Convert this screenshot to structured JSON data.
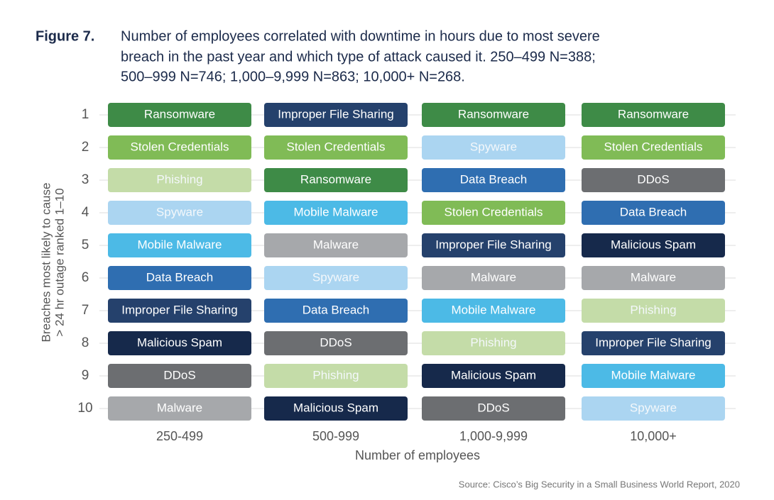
{
  "figure": {
    "label": "Figure 7.",
    "caption_lines": [
      "Number of employees correlated with downtime in hours due to most severe",
      "breach in the past year and which type of attack caused it. 250–499 N=388;",
      "500–999 N=746; 1,000–9,999 N=863; 10,000+ N=268."
    ]
  },
  "y_axis_label_lines": [
    "Breaches most likely to cause",
    "> 24 hr outage ranked 1–10"
  ],
  "ranks": [
    1,
    2,
    3,
    4,
    5,
    6,
    7,
    8,
    9,
    10
  ],
  "columns": [
    {
      "label": "250-499",
      "items": [
        "Ransomware",
        "Stolen Credentials",
        "Phishing",
        "Spyware",
        "Mobile Malware",
        "Data Breach",
        "Improper File Sharing",
        "Malicious Spam",
        "DDoS",
        "Malware"
      ]
    },
    {
      "label": "500-999",
      "items": [
        "Improper File Sharing",
        "Stolen Credentials",
        "Ransomware",
        "Mobile Malware",
        "Malware",
        "Spyware",
        "Data Breach",
        "DDoS",
        "Phishing",
        "Malicious Spam"
      ]
    },
    {
      "label": "1,000-9,999",
      "items": [
        "Ransomware",
        "Spyware",
        "Data Breach",
        "Stolen Credentials",
        "Improper File Sharing",
        "Malware",
        "Mobile Malware",
        "Phishing",
        "Malicious Spam",
        "DDoS"
      ]
    },
    {
      "label": "10,000+",
      "items": [
        "Ransomware",
        "Stolen Credentials",
        "DDoS",
        "Data Breach",
        "Malicious Spam",
        "Malware",
        "Phishing",
        "Improper File Sharing",
        "Mobile Malware",
        "Spyware"
      ]
    }
  ],
  "colors": {
    "Ransomware": "#3e8b47",
    "Stolen Credentials": "#80bb56",
    "Phishing": "#c4dca8",
    "Spyware": "#abd5f1",
    "Mobile Malware": "#4cbae6",
    "Data Breach": "#2f6eb1",
    "Improper File Sharing": "#25416c",
    "Malicious Spam": "#16294b",
    "DDoS": "#6c6e71",
    "Malware": "#a6a8ab"
  },
  "x_axis_label": "Number of employees",
  "source": "Source: Cisco’s Big Security in a Small Business World Report, 2020"
}
